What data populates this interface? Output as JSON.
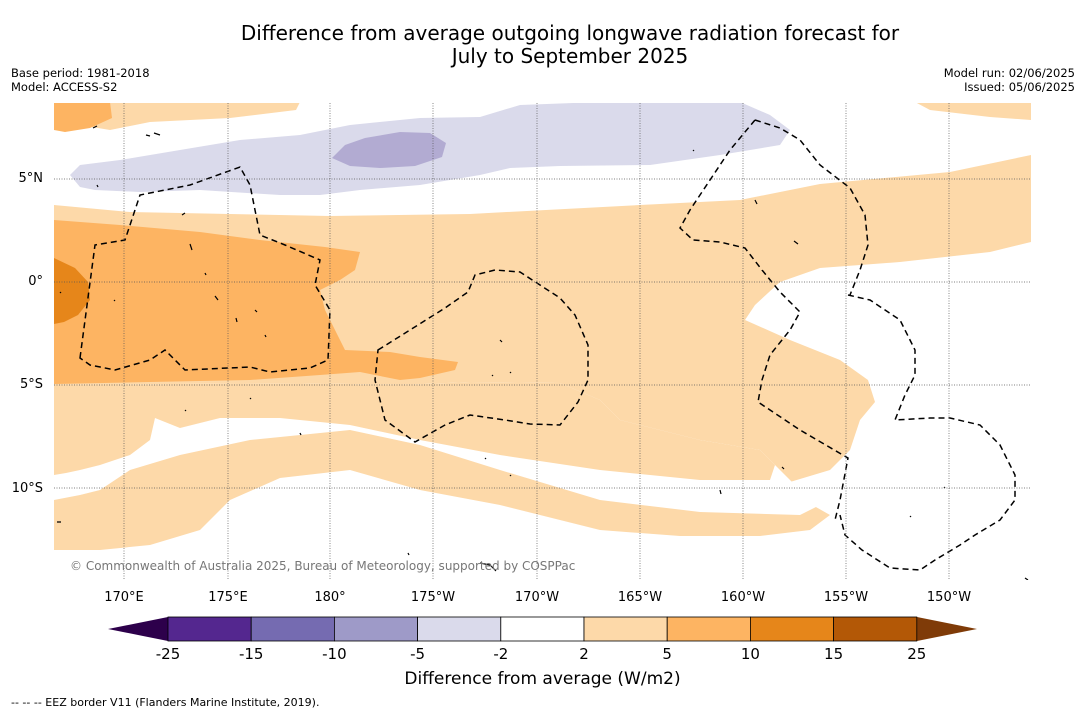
{
  "title_line1": "Difference from average outgoing longwave radiation forecast for",
  "title_line2": "July to September 2025",
  "meta_left": [
    "Base period: 1981-2018",
    "Model: ACCESS-S2"
  ],
  "meta_right": [
    "Model run: 02/06/2025",
    "Issued: 05/06/2025"
  ],
  "lat_labels": [
    "5°N",
    "0°",
    "5°S",
    "10°S"
  ],
  "lon_labels": [
    "170°E",
    "175°E",
    "180°",
    "175°W",
    "170°W",
    "165°W",
    "160°W",
    "155°W",
    "150°W"
  ],
  "copyright": "© Commonwealth of Australia 2025, Bureau of Meteorology, supported by COSPPac",
  "colorbar": {
    "ticks": [
      "-25",
      "-15",
      "-10",
      "-5",
      "-2",
      "2",
      "5",
      "10",
      "15",
      "25"
    ],
    "colors": [
      "#54278f",
      "#756bb1",
      "#9e9ac8",
      "#dadaeb",
      "#ffffff",
      "#fdd9a9",
      "#fdb462",
      "#e6861a",
      "#b35806"
    ],
    "under_color": "#2d004b",
    "over_color": "#7f3b08",
    "title": "Difference from average (W/m2)"
  },
  "legend_text": "--  --  -- EEZ border V11 (Flanders Marine Institute, 2019)."
}
